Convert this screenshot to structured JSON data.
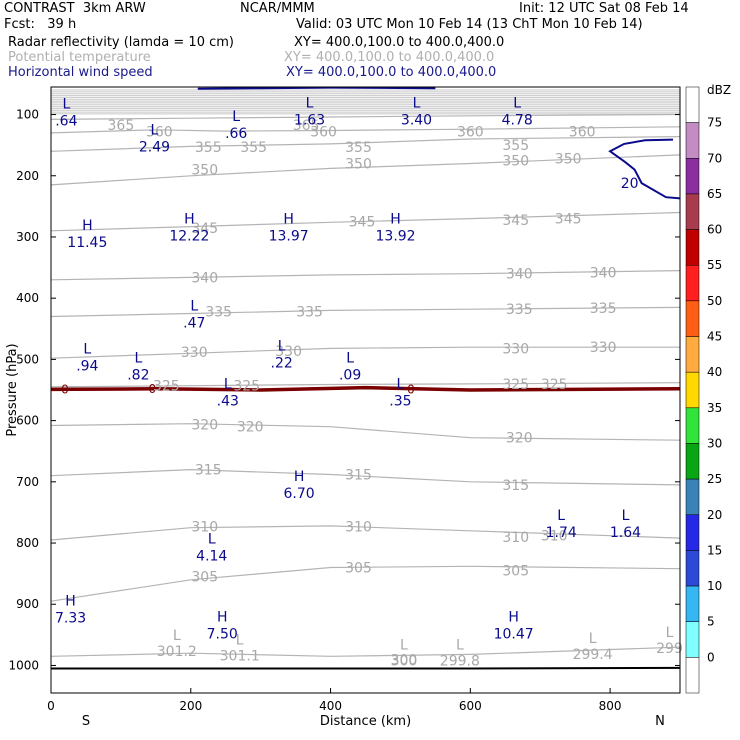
{
  "header": {
    "model": "CONTRAST  3km ARW",
    "fcst": "Fcst:   39 h",
    "center": "NCAR/MMM",
    "init": "Init: 12 UTC Sat 08 Feb 14",
    "valid": "Valid: 03 UTC Mon 10 Feb 14 (13 ChT Mon 10 Feb 14)",
    "fields": [
      {
        "label": "Radar reflectivity (lamda = 10 cm)",
        "xy": "XY= 400.0,100.0 to 400.0,400.0",
        "color": "#000000"
      },
      {
        "label": "Potential temperature",
        "xy": "XY= 400.0,100.0 to 400.0,400.0",
        "color": "#b0b0b0"
      },
      {
        "label": "Horizontal wind speed",
        "xy": "XY= 400.0,100.0 to 400.0,400.0",
        "color": "#1a1a8c"
      }
    ]
  },
  "chart_data": {
    "type": "contour",
    "xlabel": "Distance (km)",
    "ylabel": "Pressure (hPa)",
    "xlim": [
      0,
      900
    ],
    "ylim": [
      1045,
      55
    ],
    "x_ticks": [
      0,
      200,
      400,
      600,
      800
    ],
    "y_ticks": [
      100,
      200,
      300,
      400,
      500,
      600,
      700,
      800,
      900,
      1000
    ],
    "x_end_labels": {
      "left": "S",
      "right": "N"
    },
    "colorbar": {
      "unit": "dBZ",
      "levels": [
        "0",
        "5",
        "10",
        "15",
        "20",
        "25",
        "30",
        "35",
        "40",
        "45",
        "50",
        "55",
        "60",
        "65",
        "70",
        "75"
      ],
      "colors": [
        "#ffffff",
        "#7fffff",
        "#36b7f4",
        "#2b4ad6",
        "#2727e6",
        "#3b82b8",
        "#08a515",
        "#32e33b",
        "#ffd800",
        "#ffab40",
        "#ff5f15",
        "#ff1f1f",
        "#c00000",
        "#a83c4e",
        "#8b2e9e",
        "#c38cc3",
        "#ffffff"
      ]
    },
    "theta_contours": [
      {
        "value": 365,
        "points": [
          [
            0,
            108
          ],
          [
            200,
            106
          ],
          [
            400,
            104
          ],
          [
            600,
            102
          ],
          [
            900,
            100
          ]
        ],
        "labels": [
          [
            100,
            117
          ],
          [
            365,
            117
          ]
        ]
      },
      {
        "value": 360,
        "points": [
          [
            0,
            130
          ],
          [
            150,
            125
          ],
          [
            250,
            127
          ],
          [
            400,
            126
          ],
          [
            600,
            124
          ],
          [
            900,
            120
          ]
        ],
        "labels": [
          [
            155,
            128
          ],
          [
            390,
            128
          ],
          [
            600,
            128
          ],
          [
            760,
            128
          ]
        ]
      },
      {
        "value": 355,
        "points": [
          [
            0,
            160
          ],
          [
            200,
            152
          ],
          [
            400,
            148
          ],
          [
            600,
            140
          ],
          [
            900,
            136
          ]
        ],
        "labels": [
          [
            225,
            153
          ],
          [
            290,
            153
          ],
          [
            440,
            153
          ],
          [
            665,
            150
          ]
        ]
      },
      {
        "value": 350,
        "points": [
          [
            0,
            215
          ],
          [
            200,
            200
          ],
          [
            400,
            188
          ],
          [
            600,
            180
          ],
          [
            900,
            166
          ]
        ],
        "labels": [
          [
            220,
            190
          ],
          [
            440,
            180
          ],
          [
            665,
            175
          ],
          [
            740,
            172
          ]
        ]
      },
      {
        "value": 345,
        "points": [
          [
            0,
            290
          ],
          [
            200,
            283
          ],
          [
            400,
            276
          ],
          [
            600,
            270
          ],
          [
            900,
            260
          ]
        ],
        "labels": [
          [
            220,
            285
          ],
          [
            445,
            275
          ],
          [
            665,
            272
          ],
          [
            740,
            270
          ]
        ]
      },
      {
        "value": 340,
        "points": [
          [
            0,
            370
          ],
          [
            200,
            366
          ],
          [
            400,
            362
          ],
          [
            600,
            360
          ],
          [
            900,
            355
          ]
        ],
        "labels": [
          [
            220,
            366
          ],
          [
            670,
            360
          ],
          [
            790,
            358
          ]
        ]
      },
      {
        "value": 335,
        "points": [
          [
            0,
            430
          ],
          [
            200,
            425
          ],
          [
            400,
            420
          ],
          [
            600,
            418
          ],
          [
            900,
            415
          ]
        ],
        "labels": [
          [
            240,
            422
          ],
          [
            370,
            422
          ],
          [
            670,
            418
          ],
          [
            790,
            416
          ]
        ]
      },
      {
        "value": 330,
        "points": [
          [
            0,
            498
          ],
          [
            200,
            490
          ],
          [
            400,
            482
          ],
          [
            600,
            480
          ],
          [
            900,
            480
          ]
        ],
        "labels": [
          [
            205,
            488
          ],
          [
            340,
            486
          ],
          [
            665,
            482
          ],
          [
            790,
            480
          ]
        ]
      },
      {
        "value": 325,
        "points": [
          [
            0,
            545
          ],
          [
            200,
            543
          ],
          [
            400,
            541
          ],
          [
            600,
            540
          ],
          [
            900,
            538
          ]
        ],
        "labels": [
          [
            165,
            543
          ],
          [
            280,
            543
          ],
          [
            665,
            540
          ],
          [
            720,
            540
          ]
        ]
      },
      {
        "value": 320,
        "points": [
          [
            0,
            608
          ],
          [
            200,
            605
          ],
          [
            400,
            610
          ],
          [
            600,
            628
          ],
          [
            900,
            632
          ]
        ],
        "labels": [
          [
            220,
            606
          ],
          [
            285,
            610
          ],
          [
            670,
            628
          ]
        ]
      },
      {
        "value": 315,
        "points": [
          [
            0,
            690
          ],
          [
            200,
            680
          ],
          [
            400,
            688
          ],
          [
            600,
            700
          ],
          [
            900,
            705
          ]
        ],
        "labels": [
          [
            225,
            680
          ],
          [
            440,
            688
          ],
          [
            665,
            705
          ]
        ]
      },
      {
        "value": 310,
        "points": [
          [
            0,
            795
          ],
          [
            200,
            775
          ],
          [
            400,
            772
          ],
          [
            600,
            780
          ],
          [
            900,
            792
          ]
        ],
        "labels": [
          [
            220,
            773
          ],
          [
            440,
            773
          ],
          [
            665,
            790
          ],
          [
            720,
            788
          ]
        ]
      },
      {
        "value": 305,
        "points": [
          [
            0,
            895
          ],
          [
            200,
            860
          ],
          [
            400,
            840
          ],
          [
            600,
            838
          ],
          [
            900,
            842
          ]
        ],
        "labels": [
          [
            220,
            855
          ],
          [
            440,
            840
          ],
          [
            665,
            845
          ]
        ]
      },
      {
        "value": 300,
        "points": [
          [
            0,
            985
          ],
          [
            200,
            980
          ],
          [
            400,
            985
          ],
          [
            600,
            982
          ],
          [
            900,
            970
          ]
        ],
        "labels": [
          [
            505,
            990
          ]
        ]
      }
    ],
    "theta_extrema": [
      {
        "type": "L",
        "value": "301.2",
        "x": 180,
        "y": 975
      },
      {
        "type": "L",
        "value": "301.1",
        "x": 270,
        "y": 982
      },
      {
        "type": "L",
        "value": "300",
        "x": 505,
        "y": 990
      },
      {
        "type": "L",
        "value": "299.8",
        "x": 585,
        "y": 990
      },
      {
        "type": "L",
        "value": "299.4",
        "x": 775,
        "y": 980
      },
      {
        "type": "L",
        "value": "299",
        "x": 885,
        "y": 970
      }
    ],
    "wind_extrema": [
      {
        "type": "L",
        "value": ".64",
        "x": 22,
        "y": 110
      },
      {
        "type": "L",
        "value": "2.49",
        "x": 148,
        "y": 152
      },
      {
        "type": "L",
        "value": ".66",
        "x": 265,
        "y": 130
      },
      {
        "type": "L",
        "value": "1.63",
        "x": 370,
        "y": 108
      },
      {
        "type": "L",
        "value": "3.40",
        "x": 523,
        "y": 108
      },
      {
        "type": "L",
        "value": "4.78",
        "x": 667,
        "y": 108
      },
      {
        "type": "H",
        "value": "11.45",
        "x": 52,
        "y": 308
      },
      {
        "type": "H",
        "value": "12.22",
        "x": 198,
        "y": 298
      },
      {
        "type": "H",
        "value": "13.97",
        "x": 340,
        "y": 298
      },
      {
        "type": "H",
        "value": "13.92",
        "x": 493,
        "y": 298
      },
      {
        "type": "L",
        "value": ".47",
        "x": 205,
        "y": 440
      },
      {
        "type": "L",
        "value": ".94",
        "x": 52,
        "y": 510
      },
      {
        "type": "L",
        "value": ".82",
        "x": 125,
        "y": 525
      },
      {
        "type": "L",
        "value": ".22",
        "x": 330,
        "y": 505
      },
      {
        "type": "L",
        "value": ".09",
        "x": 428,
        "y": 525
      },
      {
        "type": "L",
        "value": ".43",
        "x": 253,
        "y": 567
      },
      {
        "type": "L",
        "value": ".35",
        "x": 500,
        "y": 567
      },
      {
        "type": "H",
        "value": "6.70",
        "x": 355,
        "y": 718
      },
      {
        "type": "L",
        "value": "4.14",
        "x": 230,
        "y": 820
      },
      {
        "type": "L",
        "value": "1.74",
        "x": 730,
        "y": 782
      },
      {
        "type": "L",
        "value": "1.64",
        "x": 822,
        "y": 782
      },
      {
        "type": "H",
        "value": "7.33",
        "x": 28,
        "y": 922
      },
      {
        "type": "H",
        "value": "7.50",
        "x": 245,
        "y": 948
      },
      {
        "type": "H",
        "value": "10.47",
        "x": 662,
        "y": 948
      }
    ],
    "wind_contours": [
      {
        "value": 20,
        "label_at": [
          828,
          212
        ],
        "points": [
          [
            890,
            141
          ],
          [
            850,
            142
          ],
          [
            820,
            148
          ],
          [
            800,
            160
          ],
          [
            822,
            178
          ],
          [
            835,
            190
          ],
          [
            845,
            212
          ],
          [
            880,
            235
          ],
          [
            900,
            237
          ]
        ]
      },
      {
        "value": 20,
        "points": [
          [
            210,
            58
          ],
          [
            300,
            57
          ],
          [
            400,
            56
          ],
          [
            550,
            57
          ]
        ]
      }
    ],
    "reflectivity_line": {
      "value": "0",
      "points": [
        [
          0,
          549
        ],
        [
          150,
          548
        ],
        [
          300,
          550
        ],
        [
          450,
          546
        ],
        [
          600,
          550
        ],
        [
          750,
          549
        ],
        [
          900,
          548
        ]
      ]
    },
    "terrain_line": [
      [
        0,
        1005
      ],
      [
        200,
        1005
      ],
      [
        400,
        1005
      ],
      [
        600,
        1005
      ],
      [
        900,
        1004
      ]
    ]
  }
}
